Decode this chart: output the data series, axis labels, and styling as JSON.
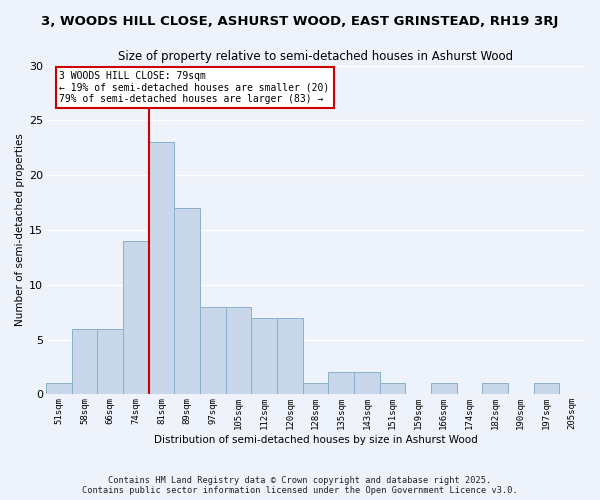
{
  "title": "3, WOODS HILL CLOSE, ASHURST WOOD, EAST GRINSTEAD, RH19 3RJ",
  "subtitle": "Size of property relative to semi-detached houses in Ashurst Wood",
  "xlabel": "Distribution of semi-detached houses by size in Ashurst Wood",
  "ylabel": "Number of semi-detached properties",
  "footnote1": "Contains HM Land Registry data © Crown copyright and database right 2025.",
  "footnote2": "Contains public sector information licensed under the Open Government Licence v3.0.",
  "bin_labels": [
    "51sqm",
    "58sqm",
    "66sqm",
    "74sqm",
    "81sqm",
    "89sqm",
    "97sqm",
    "105sqm",
    "112sqm",
    "120sqm",
    "128sqm",
    "135sqm",
    "143sqm",
    "151sqm",
    "159sqm",
    "166sqm",
    "174sqm",
    "182sqm",
    "190sqm",
    "197sqm",
    "205sqm"
  ],
  "bar_values": [
    1,
    6,
    6,
    14,
    23,
    17,
    8,
    8,
    7,
    7,
    1,
    2,
    2,
    1,
    0,
    1,
    0,
    1,
    0,
    1,
    0
  ],
  "bar_color": "#c8d8ea",
  "bar_edge_color": "#8ab0cc",
  "background_color": "#eef2fa",
  "grid_color": "#ffffff",
  "ref_line_label": "3 WOODS HILL CLOSE: 79sqm",
  "annotation_line1": "← 19% of semi-detached houses are smaller (20)",
  "annotation_line2": "79% of semi-detached houses are larger (83) →",
  "annotation_box_color": "#ffffff",
  "annotation_border_color": "#cc0000",
  "ref_line_color": "#cc0000",
  "ylim": [
    0,
    30
  ],
  "yticks": [
    0,
    5,
    10,
    15,
    20,
    25,
    30
  ],
  "ref_bin_index": 4
}
